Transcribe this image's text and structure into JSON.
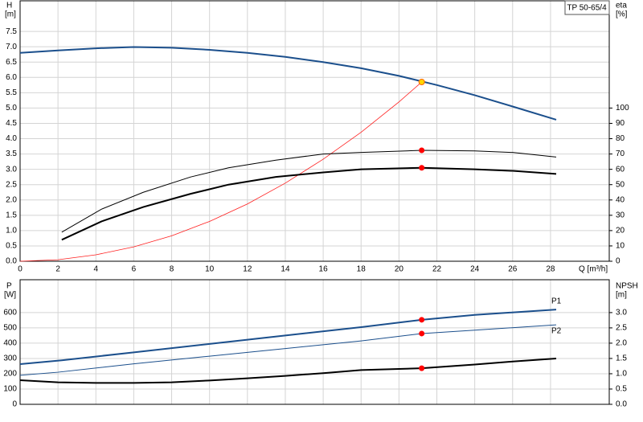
{
  "chart_data": [
    {
      "type": "line",
      "title": "TP 50-65/4",
      "ylabel": "H",
      "yunit": "[m]",
      "y2label": "eta",
      "y2unit": "[%]",
      "xlabel": "Q [m³/h]",
      "xlim": [
        0,
        31.1
      ],
      "xticks": [
        0,
        2,
        4,
        6,
        8,
        10,
        12,
        14,
        16,
        18,
        20,
        22,
        24,
        26,
        28
      ],
      "ylim": [
        0,
        8.5
      ],
      "yticks": [
        {
          "value": 0,
          "label": "0.0"
        },
        {
          "value": 0.5,
          "label": "0.5"
        },
        {
          "value": 1,
          "label": "1.0"
        },
        {
          "value": 1.5,
          "label": "1.5"
        },
        {
          "value": 2,
          "label": "2.0"
        },
        {
          "value": 2.5,
          "label": "2.5"
        },
        {
          "value": 3,
          "label": "3.0"
        },
        {
          "value": 3.5,
          "label": "3.5"
        },
        {
          "value": 4,
          "label": "4.0"
        },
        {
          "value": 4.5,
          "label": "4.5"
        },
        {
          "value": 5,
          "label": "5.0"
        },
        {
          "value": 5.5,
          "label": "5.5"
        },
        {
          "value": 6,
          "label": "6.0"
        },
        {
          "value": 6.5,
          "label": "6.5"
        },
        {
          "value": 7,
          "label": "7.0"
        },
        {
          "value": 7.5,
          "label": "7.5"
        }
      ],
      "y2lim": [
        0,
        170
      ],
      "y2ticks": [
        0,
        10,
        20,
        30,
        40,
        50,
        60,
        70,
        80,
        90,
        100
      ],
      "grid": true,
      "series": [
        {
          "color": "#1b4f8c",
          "width": 2,
          "x": [
            0,
            2,
            4,
            6,
            8,
            10,
            12,
            14,
            16,
            18,
            20,
            22,
            24,
            26,
            28.3
          ],
          "values": [
            6.8,
            6.88,
            6.95,
            6.99,
            6.97,
            6.9,
            6.8,
            6.67,
            6.5,
            6.3,
            6.05,
            5.75,
            5.42,
            5.05,
            4.62
          ]
        },
        {
          "color": "#ff2020",
          "width": 0.8,
          "x": [
            0,
            2,
            4,
            6,
            8,
            10,
            12,
            14,
            16,
            18,
            20,
            21.2
          ],
          "values": [
            0,
            0.05,
            0.21,
            0.47,
            0.83,
            1.3,
            1.87,
            2.55,
            3.33,
            4.21,
            5.2,
            5.85
          ]
        },
        {
          "color": "#000000",
          "width": 1,
          "axis": "y2",
          "x": [
            2.2,
            4.3,
            6.5,
            9,
            11,
            13.5,
            16,
            18,
            21.2,
            24,
            26,
            28.3
          ],
          "values": [
            19,
            34,
            45,
            55,
            61,
            66,
            70,
            71,
            72.4,
            72,
            71,
            68
          ]
        },
        {
          "color": "#000000",
          "width": 2,
          "axis": "y2",
          "x": [
            2.2,
            4.3,
            6.5,
            9,
            11,
            13.5,
            16,
            18,
            21.2,
            24,
            26,
            28.3
          ],
          "values": [
            14,
            26,
            35.4,
            44,
            50,
            55,
            58,
            60,
            61,
            60,
            59,
            57
          ]
        },
        {
          "color": "#ffd700",
          "marker": true,
          "x": [
            21.2
          ],
          "values": [
            5.85
          ]
        },
        {
          "color": "#ff0000",
          "marker": true,
          "axis": "y2",
          "x": [
            21.2,
            21.2
          ],
          "values": [
            72.4,
            61
          ]
        }
      ]
    },
    {
      "type": "line",
      "ylabel": "P",
      "yunit": "[W]",
      "y2label": "NPSH",
      "y2unit": "[m]",
      "xlim": [
        0,
        31.1
      ],
      "xticks": [
        0,
        2,
        4,
        6,
        8,
        10,
        12,
        14,
        16,
        18,
        20,
        22,
        24,
        26,
        28
      ],
      "ylim": [
        0,
        815
      ],
      "yticks": [
        0,
        100,
        200,
        300,
        400,
        500,
        600
      ],
      "y2lim": [
        0,
        4.075
      ],
      "y2ticks": [
        {
          "value": 0,
          "label": "0.0"
        },
        {
          "value": 0.5,
          "label": "0.5"
        },
        {
          "value": 1,
          "label": "1.0"
        },
        {
          "value": 1.5,
          "label": "1.5"
        },
        {
          "value": 2,
          "label": "2.0"
        },
        {
          "value": 2.5,
          "label": "2.5"
        },
        {
          "value": 3,
          "label": "3.0"
        }
      ],
      "grid": true,
      "series": [
        {
          "name": "P1",
          "color": "#1b4f8c",
          "width": 2,
          "x": [
            0,
            2.2,
            6,
            10,
            14,
            18,
            21.2,
            24,
            28.3
          ],
          "values": [
            263,
            288,
            340,
            395,
            450,
            505,
            553,
            585,
            620
          ]
        },
        {
          "name": "P2",
          "color": "#1b4f8c",
          "width": 1,
          "x": [
            0,
            2,
            6,
            10,
            14,
            18,
            21.2,
            24,
            28.3
          ],
          "values": [
            190,
            210,
            265,
            315,
            365,
            415,
            463,
            485,
            520
          ]
        },
        {
          "color": "#000000",
          "width": 2,
          "axis": "y2",
          "x": [
            0,
            2,
            4,
            6,
            8,
            10,
            12,
            14,
            16,
            18,
            21.2,
            24,
            26,
            28.3
          ],
          "values": [
            0.79,
            0.72,
            0.7,
            0.7,
            0.72,
            0.78,
            0.85,
            0.93,
            1.02,
            1.12,
            1.18,
            1.3,
            1.4,
            1.5
          ]
        },
        {
          "color": "#ff0000",
          "marker": true,
          "x": [
            21.2,
            21.2
          ],
          "values": [
            553,
            463
          ]
        },
        {
          "color": "#ff0000",
          "marker": true,
          "axis": "y2",
          "x": [
            21.2
          ],
          "values": [
            1.18
          ]
        }
      ]
    }
  ]
}
